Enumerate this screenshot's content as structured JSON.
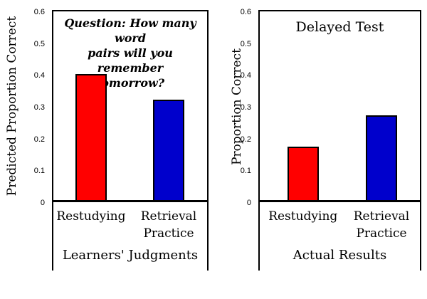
{
  "chart_data": [
    {
      "type": "bar",
      "panel": "left",
      "title_lines": [
        "Question: How many word",
        "pairs will you remember",
        "tomorrow?"
      ],
      "ylabel": "Predicted Proportion Correct",
      "xlabel": "Learners' Judgments",
      "categories": [
        "Restudying",
        "Retrieval Practice"
      ],
      "values": [
        0.4,
        0.32
      ],
      "bar_colors": [
        "#ff0000",
        "#0000cc"
      ],
      "ylim": [
        0,
        0.6
      ],
      "ytick_labels": [
        "0",
        "0.1",
        "0.2",
        "0.3",
        "0.4",
        "0.5",
        "0.6"
      ],
      "grid": false,
      "legend": "none"
    },
    {
      "type": "bar",
      "panel": "right",
      "title_lines": [
        "Delayed Test"
      ],
      "ylabel": "Proportion Correct",
      "xlabel": "Actual Results",
      "categories": [
        "Restudying",
        "Retrieval Practice"
      ],
      "values": [
        0.17,
        0.27
      ],
      "bar_colors": [
        "#ff0000",
        "#0000cc"
      ],
      "ylim": [
        0,
        0.6
      ],
      "ytick_labels": [
        "0",
        "0.1",
        "0.2",
        "0.3",
        "0.4",
        "0.5",
        "0.6"
      ],
      "grid": false,
      "legend": "none"
    }
  ],
  "colors": {
    "restudying_bar": "#ff0000",
    "retrieval_practice_bar": "#0000cc",
    "axis_and_text": "#000000",
    "background": "#ffffff"
  }
}
